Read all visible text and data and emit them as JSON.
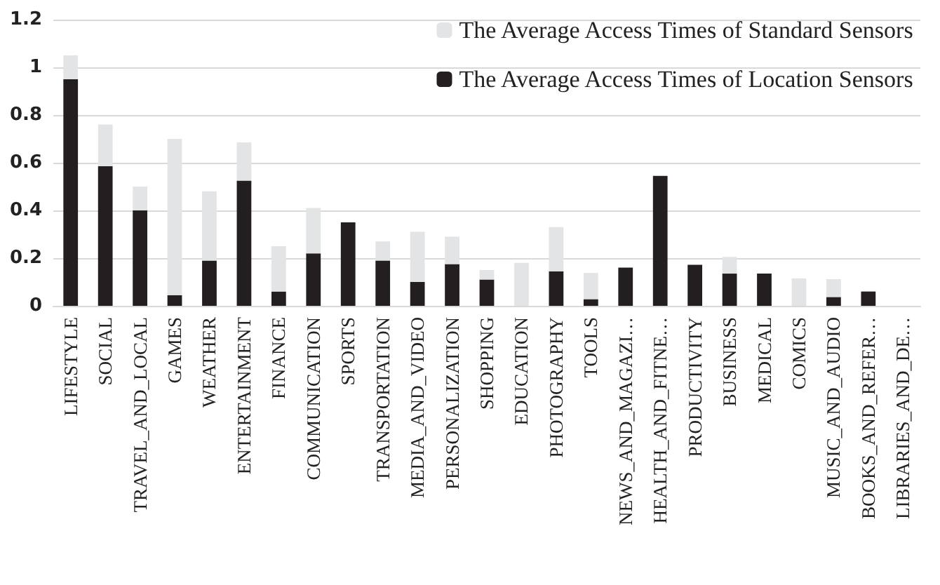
{
  "chart_data": {
    "type": "bar",
    "stacked": true,
    "categories": [
      "LIFESTYLE",
      "SOCIAL",
      "TRAVEL_AND_LOCAL",
      "GAMES",
      "WEATHER",
      "ENTERTAINMENT",
      "FINANCE",
      "COMMUNICATION",
      "SPORTS",
      "TRANSPORTATION",
      "MEDIA_AND_VIDEO",
      "PERSONALIZATION",
      "SHOPPING",
      "EDUCATION",
      "PHOTOGRAPHY",
      "TOOLS",
      "NEWS_AND_MAGAZI…",
      "HEALTH_AND_FITNE…",
      "PRODUCTIVITY",
      "BUSINESS",
      "MEDICAL",
      "COMICS",
      "MUSIC_AND_AUDIO",
      "BOOKS_AND_REFER…",
      "LIBRARIES_AND_DE…"
    ],
    "series": [
      {
        "name": "The Average Access Times of Location Sensors",
        "color": "#231f20",
        "values": [
          0.95,
          0.585,
          0.4,
          0.045,
          0.19,
          0.525,
          0.06,
          0.22,
          0.35,
          0.19,
          0.1,
          0.175,
          0.11,
          0,
          0.145,
          0.028,
          0.16,
          0.545,
          0.172,
          0.135,
          0.135,
          0,
          0.037,
          0.06,
          0
        ]
      },
      {
        "name": "The Average Access Times of Standard Sensors",
        "color": "#e3e4e5",
        "values": [
          0.1,
          0.175,
          0.1,
          0.655,
          0.29,
          0.16,
          0.19,
          0.19,
          0,
          0.08,
          0.21,
          0.115,
          0.04,
          0.18,
          0.185,
          0.11,
          0,
          0,
          0,
          0.07,
          0,
          0.115,
          0.075,
          0,
          0
        ]
      }
    ],
    "ylim": [
      0,
      1.2
    ],
    "yticks": [
      {
        "value": 0,
        "label": "0"
      },
      {
        "value": 0.2,
        "label": "0.2"
      },
      {
        "value": 0.4,
        "label": "0.4"
      },
      {
        "value": 0.6,
        "label": "0.6"
      },
      {
        "value": 0.8,
        "label": "0.8"
      },
      {
        "value": 1,
        "label": "1"
      },
      {
        "value": 1.2,
        "label": "1.2"
      }
    ],
    "grid": "y",
    "legend": "top right"
  }
}
